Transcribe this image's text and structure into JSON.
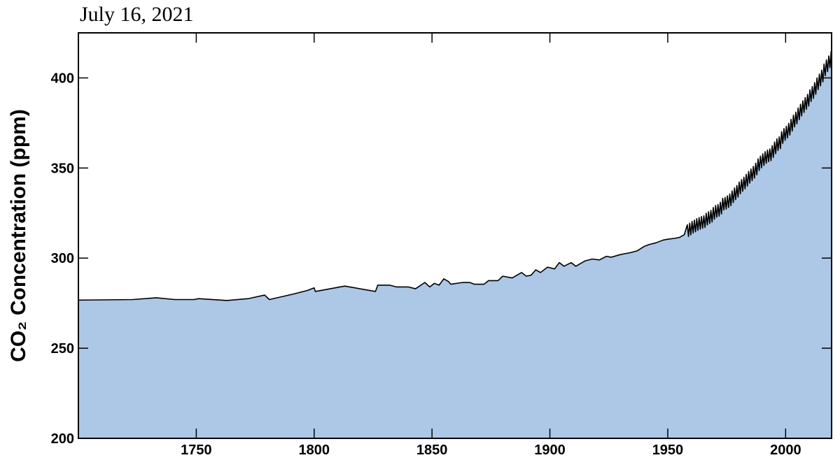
{
  "chart_data": {
    "type": "area",
    "title": "July 16, 2021",
    "ylabel": "CO₂ Concentration (ppm)",
    "x": [
      1700,
      1723,
      1733,
      1741,
      1749,
      1751,
      1763,
      1772,
      1779,
      1781,
      1791,
      1797,
      1800,
      1800.5,
      1813,
      1826,
      1827,
      1832,
      1835,
      1840,
      1843,
      1847,
      1849,
      1851,
      1853,
      1855,
      1857,
      1858,
      1863,
      1866,
      1868,
      1872,
      1874,
      1878,
      1880,
      1884,
      1888,
      1890,
      1892,
      1894,
      1896,
      1899,
      1902,
      1904,
      1906,
      1909,
      1911,
      1913,
      1915,
      1918,
      1921,
      1924,
      1926,
      1930,
      1934,
      1937,
      1940,
      1942,
      1945,
      1948,
      1950,
      1953,
      1955,
      1957,
      1958.3,
      1958.8,
      1959.3,
      1959.8,
      1960.3,
      1960.8,
      1961.3,
      1961.8,
      1962.3,
      1962.8,
      1963.3,
      1963.8,
      1964.3,
      1964.8,
      1965.3,
      1965.8,
      1966.3,
      1966.8,
      1967.3,
      1967.8,
      1968.3,
      1968.8,
      1969.3,
      1969.8,
      1970.3,
      1970.8,
      1971.3,
      1971.8,
      1972.3,
      1972.8,
      1973.3,
      1973.8,
      1974.3,
      1974.8,
      1975.3,
      1975.8,
      1976.3,
      1976.8,
      1977.3,
      1977.8,
      1978.3,
      1978.8,
      1979.3,
      1979.8,
      1980.3,
      1980.8,
      1981.3,
      1981.8,
      1982.3,
      1982.8,
      1983.3,
      1983.8,
      1984.3,
      1984.8,
      1985.3,
      1985.8,
      1986.3,
      1986.8,
      1987.3,
      1987.8,
      1988.3,
      1988.8,
      1989.3,
      1989.8,
      1990.3,
      1990.8,
      1991.3,
      1991.8,
      1992.3,
      1992.8,
      1993.3,
      1993.8,
      1994.3,
      1994.8,
      1995.3,
      1995.8,
      1996.3,
      1996.8,
      1997.3,
      1997.8,
      1998.3,
      1998.8,
      1999.3,
      1999.8,
      2000.3,
      2000.8,
      2001.3,
      2001.8,
      2002.3,
      2002.8,
      2003.3,
      2003.8,
      2004.3,
      2004.8,
      2005.3,
      2005.8,
      2006.3,
      2006.8,
      2007.3,
      2007.8,
      2008.3,
      2008.8,
      2009.3,
      2009.8,
      2010.3,
      2010.8,
      2011.3,
      2011.8,
      2012.3,
      2012.8,
      2013.3,
      2013.8,
      2014.3,
      2014.8,
      2015.3,
      2015.8,
      2016.3,
      2016.8,
      2017.3,
      2017.8,
      2018.3,
      2018.8,
      2019.3
    ],
    "series": [
      {
        "fill_color": "#adc8e6",
        "color": "#000000",
        "values": [
          276.7,
          277,
          278,
          277,
          277,
          277.5,
          276.5,
          277.5,
          279.5,
          277,
          280,
          282,
          283.5,
          281.5,
          284.5,
          281.5,
          285,
          285,
          284,
          284,
          283,
          286.5,
          284,
          286,
          285,
          288.5,
          287,
          285.5,
          286.5,
          286.5,
          285.5,
          285.5,
          287.5,
          287.5,
          290,
          289,
          292,
          290,
          290.5,
          293.5,
          292,
          295,
          294,
          297.5,
          295.5,
          297.5,
          295.5,
          297,
          298.5,
          299.5,
          299,
          301,
          300.5,
          302,
          303,
          304,
          306.5,
          307.5,
          308.5,
          310,
          310.5,
          311,
          311.5,
          313,
          318.5,
          312.0,
          319.4,
          312.9,
          320.4,
          313.9,
          321.1,
          314.6,
          321.9,
          315.4,
          322.5,
          316.0,
          323.1,
          316.6,
          323.5,
          317.0,
          324.9,
          318.4,
          325.7,
          319.2,
          326.5,
          320.0,
          328.1,
          321.6,
          329.2,
          322.7,
          329.8,
          323.3,
          331.0,
          324.5,
          333.2,
          326.7,
          333.7,
          327.2,
          334.6,
          328.1,
          335.6,
          329.1,
          337.3,
          330.8,
          338.9,
          332.4,
          340.3,
          333.8,
          342.2,
          335.7,
          343.6,
          337.1,
          344.9,
          338.4,
          346.5,
          340.0,
          348.1,
          341.6,
          349.5,
          343.0,
          350.9,
          344.4,
          352.7,
          346.2,
          355.1,
          348.6,
          356.6,
          350.1,
          357.9,
          351.4,
          359.1,
          352.6,
          360.0,
          353.5,
          360.6,
          354.1,
          362.4,
          355.9,
          364.4,
          357.9,
          366.2,
          359.7,
          367.3,
          360.8,
          370.2,
          363.7,
          371.9,
          365.4,
          373.2,
          366.7,
          374.8,
          368.3,
          377.0,
          370.5,
          379.3,
          372.8,
          381.0,
          374.5,
          383.3,
          376.8,
          385.4,
          378.9,
          387.3,
          380.8,
          389.1,
          382.6,
          390.9,
          384.4,
          393.4,
          386.9,
          395.2,
          388.7,
          397.4,
          390.9,
          400.0,
          393.5,
          402.1,
          395.6,
          404.3,
          397.8,
          407.7,
          401.2,
          410.0,
          403.5,
          412.2,
          405.7,
          414.9
        ]
      }
    ],
    "xlim": [
      1700,
      2019.5
    ],
    "ylim": [
      200,
      425
    ],
    "xticks": [
      1750,
      1800,
      1850,
      1900,
      1950,
      2000
    ],
    "yticks": [
      200,
      250,
      300,
      350,
      400
    ],
    "grid": false
  }
}
